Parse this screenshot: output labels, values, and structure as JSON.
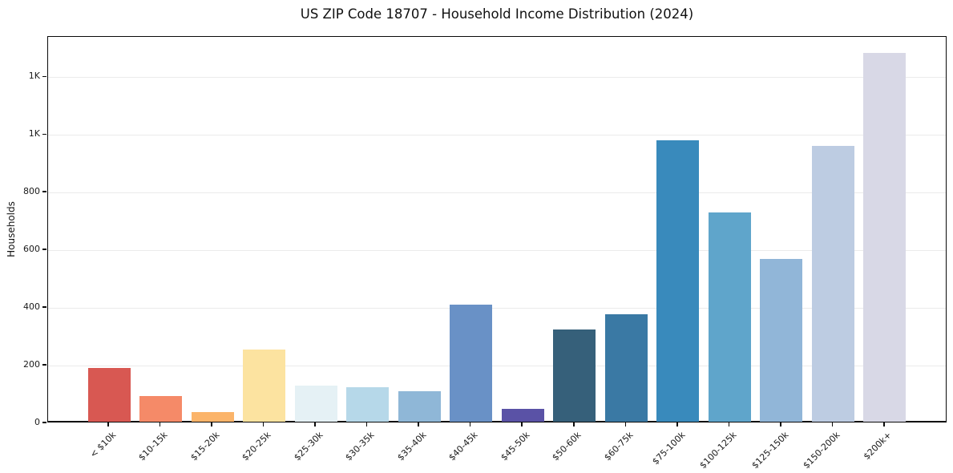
{
  "chart_data": {
    "type": "bar",
    "title": "US ZIP Code 18707 - Household Income Distribution (2024)",
    "xlabel": "",
    "ylabel": "Households",
    "categories": [
      "< $10k",
      "$10-15k",
      "$15-20k",
      "$20-25k",
      "$25-30k",
      "$30-35k",
      "$35-40k",
      "$40-45k",
      "$45-50k",
      "$50-60k",
      "$60-75k",
      "$75-100k",
      "$100-125k",
      "$125-150k",
      "$150-200k",
      "$200k+"
    ],
    "values": [
      185,
      90,
      33,
      250,
      125,
      120,
      106,
      407,
      44,
      320,
      373,
      975,
      726,
      565,
      955,
      1280
    ],
    "bar_colors": [
      "#d85852",
      "#f58a68",
      "#fbb46a",
      "#fce3a0",
      "#e5f1f5",
      "#b6d8e9",
      "#8fb7d7",
      "#6991c6",
      "#5a52a6",
      "#36607a",
      "#3a79a4",
      "#398abc",
      "#5fa5cb",
      "#91b6d8",
      "#bdcce2",
      "#d8d8e6"
    ],
    "ylim": [
      0,
      1340
    ],
    "yticks": [
      {
        "value": 0,
        "label": "0"
      },
      {
        "value": 200,
        "label": "200"
      },
      {
        "value": 400,
        "label": "400"
      },
      {
        "value": 600,
        "label": "600"
      },
      {
        "value": 800,
        "label": "800"
      },
      {
        "value": 1000,
        "label": "1K"
      },
      {
        "value": 1200,
        "label": "1K"
      }
    ],
    "grid": "horizontal",
    "legend": "none"
  }
}
